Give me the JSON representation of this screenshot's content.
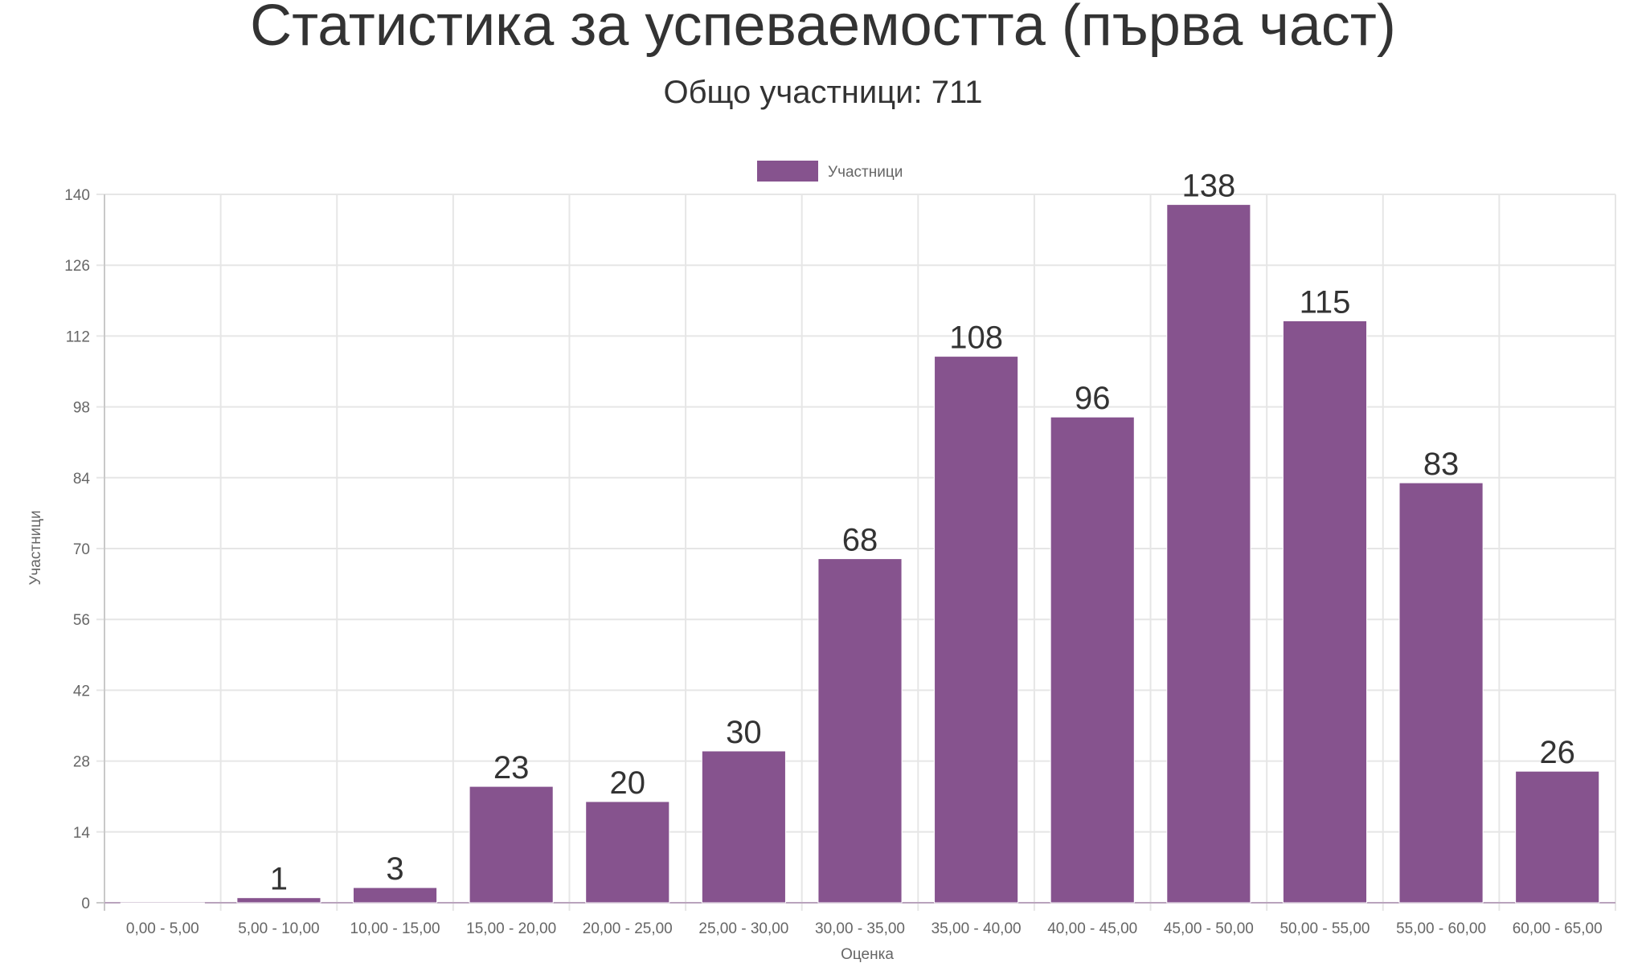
{
  "chart_data": {
    "type": "bar",
    "title": "Статистика за успеваемостта (първа част)",
    "subtitle": "Общо участници: 711",
    "xlabel": "Оценка",
    "ylabel": "Участници",
    "categories": [
      "0,00 - 5,00",
      "5,00 - 10,00",
      "10,00 - 15,00",
      "15,00 - 20,00",
      "20,00 - 25,00",
      "25,00 - 30,00",
      "30,00 - 35,00",
      "35,00 - 40,00",
      "40,00 - 45,00",
      "45,00 - 50,00",
      "50,00 - 55,00",
      "55,00 - 60,00",
      "60,00 - 65,00"
    ],
    "series": [
      {
        "name": "Участници",
        "values": [
          0,
          1,
          3,
          23,
          20,
          30,
          68,
          108,
          96,
          138,
          115,
          83,
          26
        ],
        "color": "#86538e"
      }
    ],
    "data_labels": [
      "",
      "1",
      "3",
      "23",
      "20",
      "30",
      "68",
      "108",
      "96",
      "138",
      "115",
      "83",
      "26"
    ],
    "ylim": [
      0,
      140
    ],
    "yticks": [
      0,
      14,
      28,
      42,
      56,
      70,
      84,
      98,
      112,
      126,
      140
    ],
    "grid": true,
    "legend": "top-center"
  }
}
